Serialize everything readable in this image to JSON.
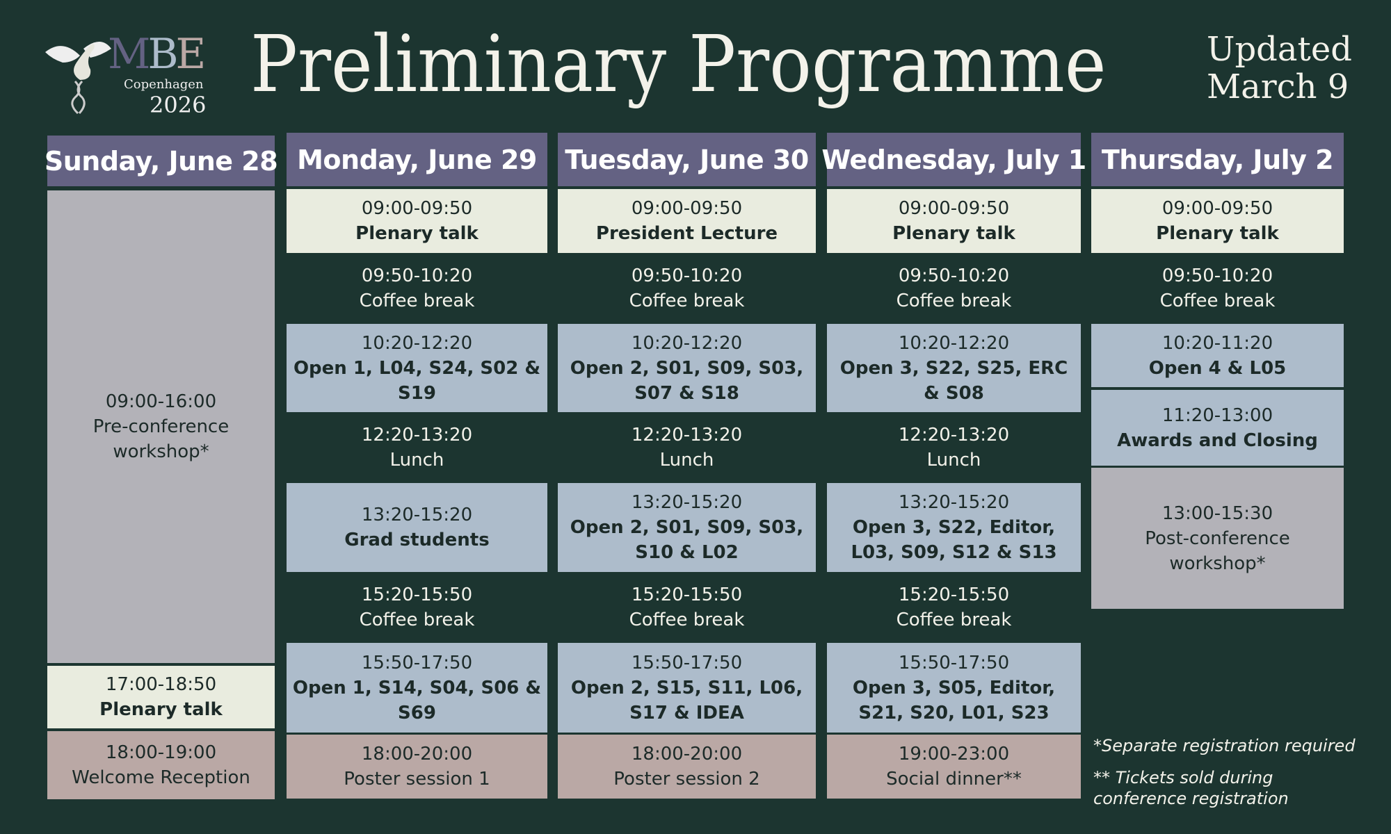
{
  "logo": {
    "letters": [
      "M",
      "B",
      "E"
    ],
    "city": "Copenhagen",
    "year": "2026"
  },
  "title": "Preliminary Programme",
  "updated": {
    "line1": "Updated",
    "line2": "March 9"
  },
  "colors": {
    "background": "#1c3530",
    "header": "#646283",
    "plenary": "#e9ecdf",
    "session": "#adbccb",
    "workshop": "#b3b2b8",
    "social": "#baa8a5"
  },
  "days": [
    {
      "label": "Sunday, June 28",
      "slots": [
        {
          "type": "grey",
          "time": "09:00-16:00",
          "title": "Pre-conference workshop*"
        },
        {
          "type": "cream",
          "time": "17:00-18:50",
          "title": "Plenary talk"
        },
        {
          "type": "pink",
          "time": "18:00-19:00",
          "title": "Welcome Reception"
        }
      ]
    },
    {
      "label": "Monday, June 29",
      "slots": [
        {
          "type": "cream",
          "time": "09:00-09:50",
          "title": "Plenary talk"
        },
        {
          "type": "plain",
          "time": "09:50-10:20",
          "title": "Coffee break"
        },
        {
          "type": "blue",
          "time": "10:20-12:20",
          "title": "Open 1, L04, S24, S02 & S19"
        },
        {
          "type": "plain",
          "time": "12:20-13:20",
          "title": "Lunch"
        },
        {
          "type": "blue",
          "time": "13:20-15:20",
          "title": "Grad students"
        },
        {
          "type": "plain",
          "time": "15:20-15:50",
          "title": "Coffee break"
        },
        {
          "type": "blue",
          "time": "15:50-17:50",
          "title": "Open 1, S14, S04, S06 & S69"
        },
        {
          "type": "pink",
          "time": "18:00-20:00",
          "title": "Poster session 1"
        }
      ]
    },
    {
      "label": "Tuesday, June 30",
      "slots": [
        {
          "type": "cream",
          "time": "09:00-09:50",
          "title": "President Lecture"
        },
        {
          "type": "plain",
          "time": "09:50-10:20",
          "title": "Coffee break"
        },
        {
          "type": "blue",
          "time": "10:20-12:20",
          "title": "Open 2, S01, S09, S03, S07 & S18"
        },
        {
          "type": "plain",
          "time": "12:20-13:20",
          "title": "Lunch"
        },
        {
          "type": "blue",
          "time": "13:20-15:20",
          "title": "Open 2, S01, S09, S03, S10 & L02"
        },
        {
          "type": "plain",
          "time": "15:20-15:50",
          "title": "Coffee break"
        },
        {
          "type": "blue",
          "time": "15:50-17:50",
          "title": "Open 2, S15, S11, L06, S17 & IDEA"
        },
        {
          "type": "pink",
          "time": "18:00-20:00",
          "title": "Poster session 2"
        }
      ]
    },
    {
      "label": "Wednesday, July 1",
      "slots": [
        {
          "type": "cream",
          "time": "09:00-09:50",
          "title": "Plenary talk"
        },
        {
          "type": "plain",
          "time": "09:50-10:20",
          "title": "Coffee break"
        },
        {
          "type": "blue",
          "time": "10:20-12:20",
          "title": "Open 3, S22, S25, ERC & S08"
        },
        {
          "type": "plain",
          "time": "12:20-13:20",
          "title": "Lunch"
        },
        {
          "type": "blue",
          "time": "13:20-15:20",
          "title": "Open 3, S22, Editor, L03, S09, S12 & S13"
        },
        {
          "type": "plain",
          "time": "15:20-15:50",
          "title": "Coffee break"
        },
        {
          "type": "blue",
          "time": "15:50-17:50",
          "title": "Open 3, S05, Editor, S21, S20, L01, S23"
        },
        {
          "type": "pink",
          "time": "19:00-23:00",
          "title": "Social dinner**"
        }
      ]
    },
    {
      "label": "Thursday, July 2",
      "slots": [
        {
          "type": "cream",
          "time": "09:00-09:50",
          "title": "Plenary talk"
        },
        {
          "type": "plain",
          "time": "09:50-10:20",
          "title": "Coffee break"
        },
        {
          "type": "blue",
          "time": "10:20-11:20",
          "title": "Open 4 & L05"
        },
        {
          "type": "blue",
          "time": "11:20-13:00",
          "title": "Awards and Closing"
        },
        {
          "type": "grey",
          "time": "13:00-15:30",
          "title": "Post-conference workshop*"
        }
      ]
    }
  ],
  "notes": {
    "separate": "*Separate registration required",
    "tickets_1": "** Tickets sold during",
    "tickets_2": "conference registration"
  }
}
